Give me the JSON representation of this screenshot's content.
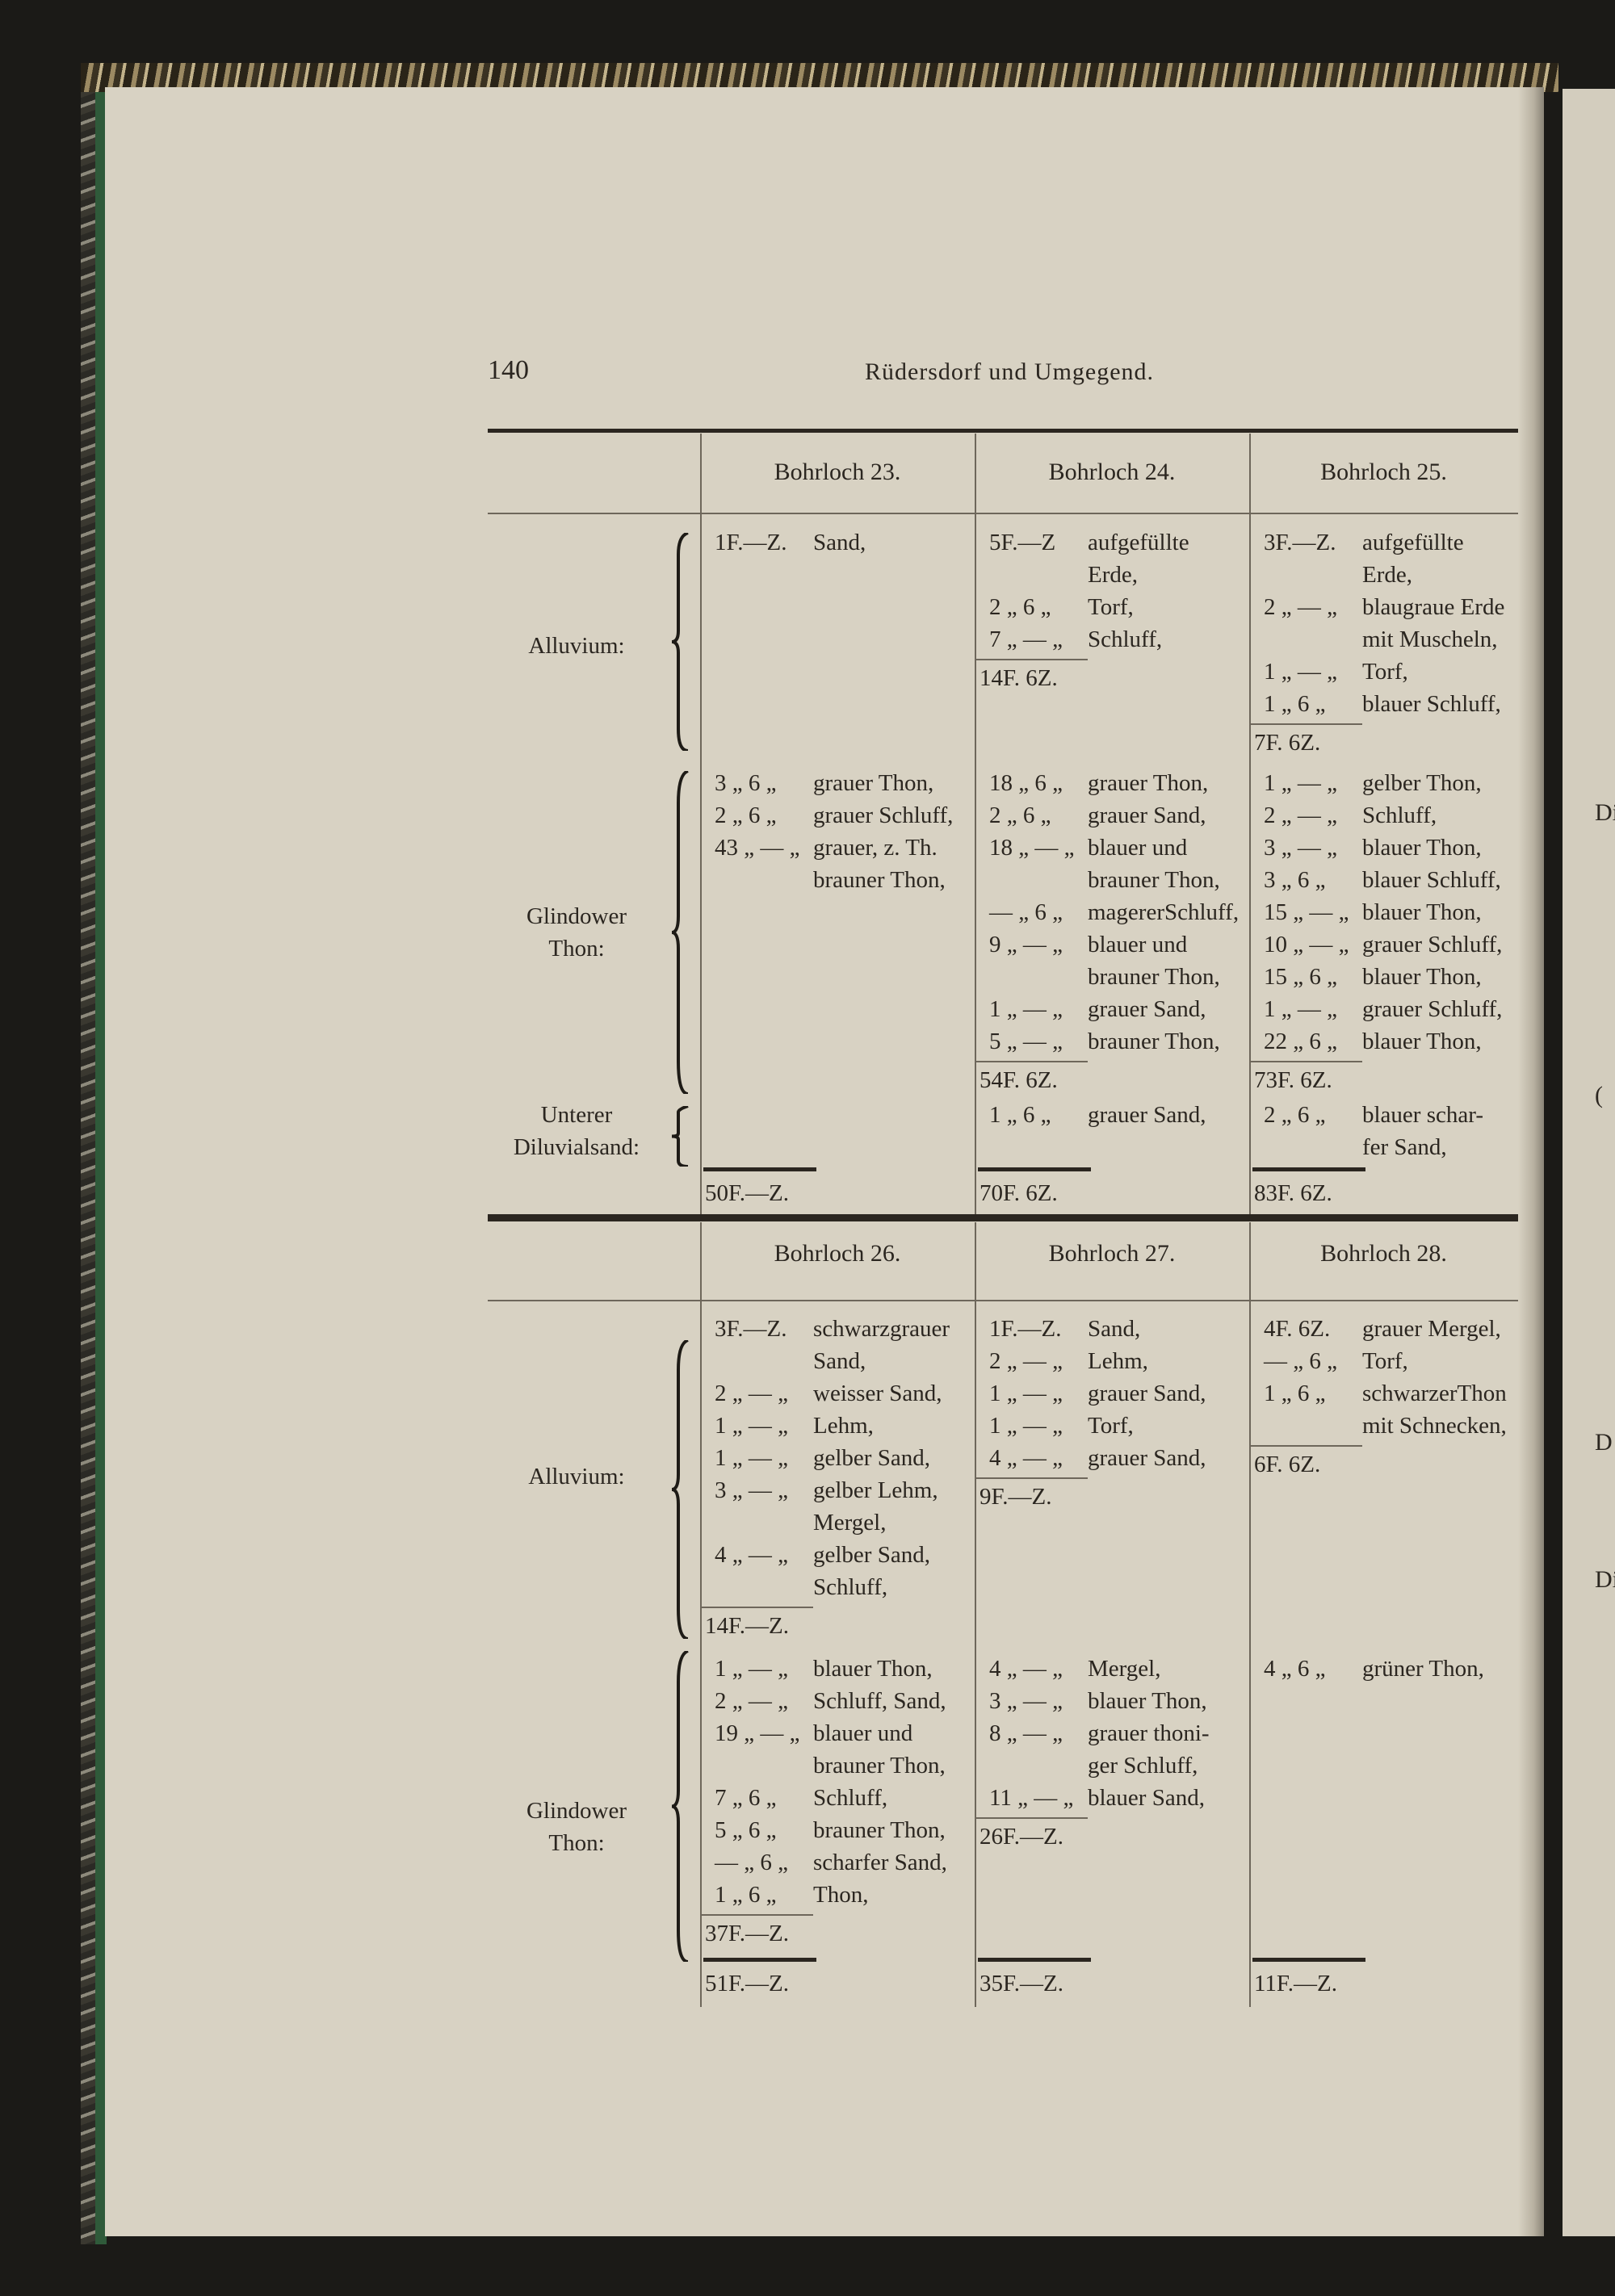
{
  "page_number": "140",
  "running_title": "Rüdersdorf und Umgegend.",
  "tables": [
    {
      "headers": [
        "Bohrloch 23.",
        "Bohrloch 24.",
        "Bohrloch 25."
      ],
      "groups": [
        {
          "label": [
            "Alluvium:"
          ],
          "cells": [
            [
              {
                "q": "1F.—Z.",
                "t": "Sand,"
              }
            ],
            [
              {
                "q": "5F.—Z",
                "t": "aufgefüllte"
              },
              {
                "q": "",
                "t": "Erde,"
              },
              {
                "q": "2 „ 6 „",
                "t": "Torf,"
              },
              {
                "q": "7 „ — „",
                "t": "Schluff,"
              },
              {
                "sum": "14F. 6Z."
              }
            ],
            [
              {
                "q": "3F.—Z.",
                "t": "aufgefüllte"
              },
              {
                "q": "",
                "t": "Erde,"
              },
              {
                "q": "2 „ — „",
                "t": "blaugraue Erde"
              },
              {
                "q": "",
                "t": "mit Muscheln,"
              },
              {
                "q": "1 „ — „",
                "t": "Torf,"
              },
              {
                "q": "1 „ 6 „",
                "t": "blauer Schluff,"
              },
              {
                "sum": "7F. 6Z."
              }
            ]
          ]
        },
        {
          "label": [
            "Glindower",
            "Thon:"
          ],
          "cells": [
            [
              {
                "q": "3 „ 6 „",
                "t": "grauer Thon,"
              },
              {
                "q": "2 „ 6 „",
                "t": "grauer Schluff,"
              },
              {
                "q": "43 „ — „",
                "t": "grauer, z. Th."
              },
              {
                "q": "",
                "t": "brauner Thon,"
              }
            ],
            [
              {
                "q": "18 „ 6 „",
                "t": "grauer Thon,"
              },
              {
                "q": "2 „ 6 „",
                "t": "grauer Sand,"
              },
              {
                "q": "18 „ — „",
                "t": "blauer und"
              },
              {
                "q": "",
                "t": "brauner Thon,"
              },
              {
                "q": "— „ 6 „",
                "t": "magererSchluff,"
              },
              {
                "q": "9 „ — „",
                "t": "blauer und"
              },
              {
                "q": "",
                "t": "brauner Thon,"
              },
              {
                "q": "1 „ — „",
                "t": "grauer Sand,"
              },
              {
                "q": "5 „ — „",
                "t": "brauner Thon,"
              },
              {
                "sum": "54F. 6Z."
              }
            ],
            [
              {
                "q": "1 „ — „",
                "t": "gelber Thon,"
              },
              {
                "q": "2 „ — „",
                "t": "Schluff,"
              },
              {
                "q": "3 „ — „",
                "t": "blauer Thon,"
              },
              {
                "q": "3 „ 6 „",
                "t": "blauer Schluff,"
              },
              {
                "q": "15 „ — „",
                "t": "blauer Thon,"
              },
              {
                "q": "10 „ — „",
                "t": "grauer Schluff,"
              },
              {
                "q": "15 „ 6 „",
                "t": "blauer Thon,"
              },
              {
                "q": "1 „ — „",
                "t": "grauer Schluff,"
              },
              {
                "q": "22 „ 6 „",
                "t": "blauer Thon,"
              },
              {
                "sum": "73F. 6Z."
              }
            ]
          ]
        },
        {
          "label": [
            "Unterer",
            "Diluvialsand:"
          ],
          "cells": [
            [],
            [
              {
                "q": "1 „ 6 „",
                "t": "grauer Sand,"
              }
            ],
            [
              {
                "q": "2 „ 6 „",
                "t": "blauer schar-"
              },
              {
                "q": "",
                "t": "fer Sand,"
              }
            ]
          ]
        }
      ],
      "totals": [
        "50F.—Z.",
        "70F. 6Z.",
        "83F. 6Z."
      ]
    },
    {
      "headers": [
        "Bohrloch 26.",
        "Bohrloch 27.",
        "Bohrloch 28."
      ],
      "groups": [
        {
          "label": [
            "Alluvium:"
          ],
          "cells": [
            [
              {
                "q": "3F.—Z.",
                "t": "schwarzgrauer"
              },
              {
                "q": "",
                "t": "Sand,"
              },
              {
                "q": "2 „ — „",
                "t": "weisser Sand,"
              },
              {
                "q": "1 „ — „",
                "t": "Lehm,"
              },
              {
                "q": "1 „ — „",
                "t": "gelber Sand,"
              },
              {
                "q": "3 „ — „",
                "t": "gelber Lehm,"
              },
              {
                "q": "",
                "t": "Mergel,"
              },
              {
                "q": "4 „ — „",
                "t": "gelber Sand,"
              },
              {
                "q": "",
                "t": "Schluff,"
              },
              {
                "sum": "14F.—Z."
              }
            ],
            [
              {
                "q": "1F.—Z.",
                "t": "Sand,"
              },
              {
                "q": "2 „ — „",
                "t": "Lehm,"
              },
              {
                "q": "1 „ — „",
                "t": "grauer Sand,"
              },
              {
                "q": "1 „ — „",
                "t": "Torf,"
              },
              {
                "q": "4 „ — „",
                "t": "grauer Sand,"
              },
              {
                "sum": "9F.—Z."
              }
            ],
            [
              {
                "q": "4F. 6Z.",
                "t": "grauer Mergel,"
              },
              {
                "q": "— „ 6 „",
                "t": "Torf,"
              },
              {
                "q": "1 „ 6 „",
                "t": "schwarzerThon"
              },
              {
                "q": "",
                "t": "mit Schnecken,"
              },
              {
                "sum": "6F. 6Z."
              }
            ]
          ]
        },
        {
          "label": [
            "Glindower",
            "Thon:"
          ],
          "cells": [
            [
              {
                "q": "1 „ — „",
                "t": "blauer Thon,"
              },
              {
                "q": "2 „ — „",
                "t": "Schluff, Sand,"
              },
              {
                "q": "19 „ — „",
                "t": "blauer und"
              },
              {
                "q": "",
                "t": "brauner Thon,"
              },
              {
                "q": "7 „ 6 „",
                "t": "Schluff,"
              },
              {
                "q": "5 „ 6 „",
                "t": "brauner Thon,"
              },
              {
                "q": "— „ 6 „",
                "t": "scharfer Sand,"
              },
              {
                "q": "1 „ 6 „",
                "t": "Thon,"
              },
              {
                "sum": "37F.—Z."
              }
            ],
            [
              {
                "q": "4 „ — „",
                "t": "Mergel,"
              },
              {
                "q": "3 „ — „",
                "t": "blauer Thon,"
              },
              {
                "q": "8 „ — „",
                "t": "grauer thoni-"
              },
              {
                "q": "",
                "t": "ger Schluff,"
              },
              {
                "q": "11 „ — „",
                "t": "blauer Sand,"
              },
              {
                "sum": "26F.—Z."
              }
            ],
            [
              {
                "q": "4 „ 6 „",
                "t": "grüner Thon,"
              }
            ]
          ]
        }
      ],
      "totals": [
        "51F.—Z.",
        "35F.—Z.",
        "11F.—Z."
      ]
    }
  ],
  "facing_page_fragments": [
    "Di",
    "(",
    "D",
    "Di"
  ]
}
